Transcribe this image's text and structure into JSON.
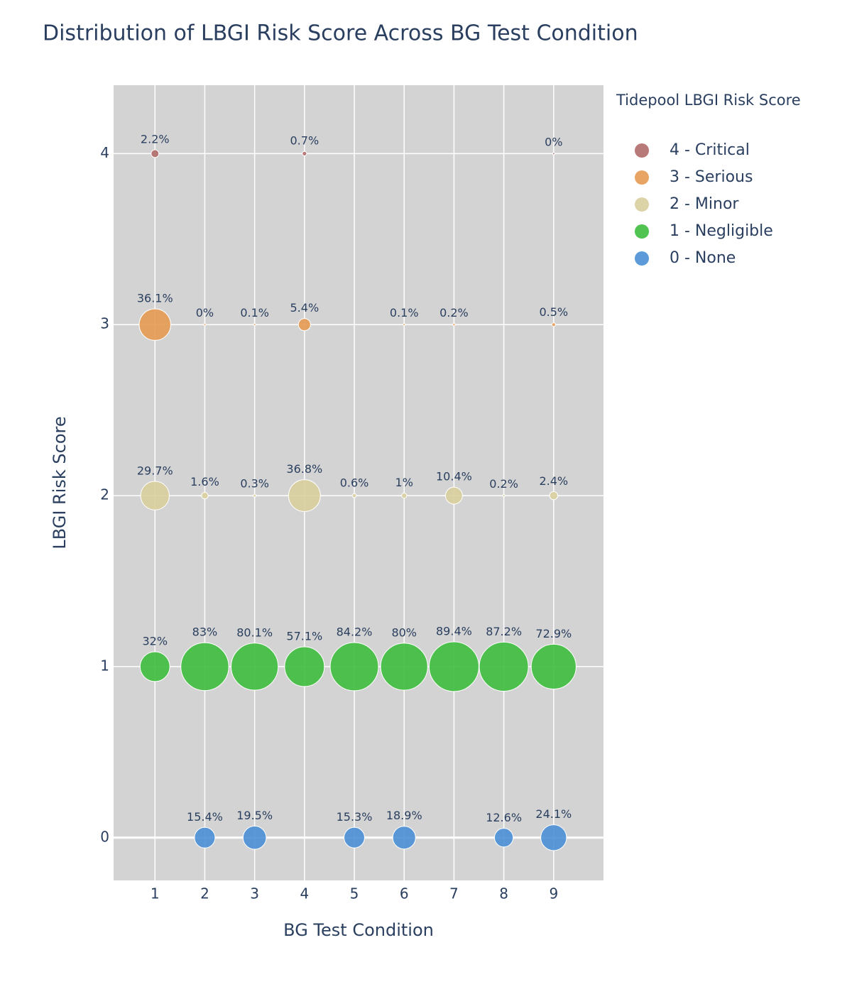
{
  "chart_data": {
    "type": "bubble",
    "title": "Distribution of LBGI Risk Score Across BG Test Condition",
    "x_label": "BG Test Condition",
    "y_label": "LBGI Risk Score",
    "legend_title": "Tidepool LBGI Risk Score",
    "legend_position": "right",
    "grid": true,
    "xlim": [
      0.17,
      10.0
    ],
    "ylim": [
      -0.25,
      4.4
    ],
    "xticks": [
      1,
      2,
      3,
      4,
      5,
      6,
      7,
      8,
      9
    ],
    "yticks": [
      0,
      1,
      2,
      3,
      4
    ],
    "series": [
      {
        "name": "4 - Critical",
        "color": "#b06a6a",
        "x": [
          1,
          4,
          9
        ],
        "y": [
          4,
          4,
          4
        ],
        "values": [
          2.2,
          0.7,
          0
        ],
        "value_labels": [
          "2.2%",
          "0.7%",
          "0%"
        ]
      },
      {
        "name": "3 - Serious",
        "color": "#e59a52",
        "x": [
          1,
          2,
          3,
          4,
          6,
          7,
          9
        ],
        "y": [
          3,
          3,
          3,
          3,
          3,
          3,
          3
        ],
        "values": [
          36.1,
          0,
          0.1,
          5.4,
          0.1,
          0.2,
          0.5
        ],
        "value_labels": [
          "36.1%",
          "0%",
          "0.1%",
          "5.4%",
          "0.1%",
          "0.2%",
          "0.5%"
        ]
      },
      {
        "name": "2 - Minor",
        "color": "#d8cf9c",
        "x": [
          1,
          2,
          3,
          4,
          5,
          6,
          7,
          8,
          9
        ],
        "y": [
          2,
          2,
          2,
          2,
          2,
          2,
          2,
          2,
          2
        ],
        "values": [
          29.7,
          1.6,
          0.3,
          36.8,
          0.6,
          1,
          10.4,
          0.2,
          2.4
        ],
        "value_labels": [
          "29.7%",
          "1.6%",
          "0.3%",
          "36.8%",
          "0.6%",
          "1%",
          "10.4%",
          "0.2%",
          "2.4%"
        ]
      },
      {
        "name": "1 - Negligible",
        "color": "#3dbd3d",
        "x": [
          1,
          2,
          3,
          4,
          5,
          6,
          7,
          8,
          9
        ],
        "y": [
          1,
          1,
          1,
          1,
          1,
          1,
          1,
          1,
          1
        ],
        "values": [
          32,
          83,
          80.1,
          57.1,
          84.2,
          80,
          89.4,
          87.2,
          72.9
        ],
        "value_labels": [
          "32%",
          "83%",
          "80.1%",
          "57.1%",
          "84.2%",
          "80%",
          "89.4%",
          "87.2%",
          "72.9%"
        ]
      },
      {
        "name": "0 - None",
        "color": "#4a8fd6",
        "x": [
          2,
          3,
          5,
          6,
          8,
          9
        ],
        "y": [
          0,
          0,
          0,
          0,
          0,
          0
        ],
        "values": [
          15.4,
          19.5,
          15.3,
          18.9,
          12.6,
          24.1
        ],
        "value_labels": [
          "15.4%",
          "19.5%",
          "15.3%",
          "18.9%",
          "12.6%",
          "24.1%"
        ]
      }
    ]
  }
}
